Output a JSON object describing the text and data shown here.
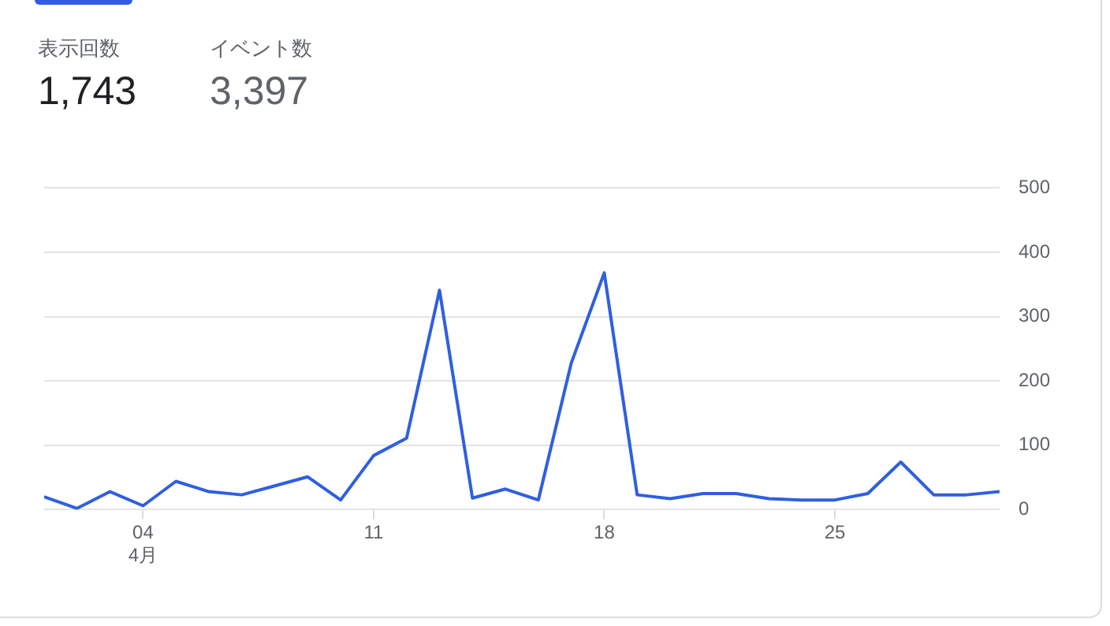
{
  "chart_data": {
    "type": "line",
    "annotations": [
      "表示回数",
      "1,743",
      "イベント数",
      "3,397"
    ],
    "x": [
      "--04-01",
      "--04-02",
      "--04-03",
      "--04-04",
      "--04-05",
      "--04-06",
      "--04-07",
      "--04-08",
      "--04-09",
      "--04-10",
      "--04-11",
      "--04-12",
      "--04-13",
      "--04-14",
      "--04-15",
      "--04-16",
      "--04-17",
      "--04-18",
      "--04-19",
      "--04-20",
      "--04-21",
      "--04-22",
      "--04-23",
      "--04-24",
      "--04-25",
      "--04-26",
      "--04-27",
      "--04-28",
      "--04-29",
      "--04-30"
    ],
    "series": [
      {
        "color": "#2f5fe0",
        "values": [
          20,
          2,
          28,
          6,
          44,
          28,
          23,
          37,
          51,
          15,
          84,
          111,
          341,
          18,
          32,
          15,
          228,
          368,
          23,
          17,
          25,
          25,
          17,
          15,
          15,
          25,
          74,
          23,
          23,
          28
        ]
      }
    ],
    "xlim": [
      "--04-01",
      "--04-30"
    ],
    "xticks": [
      {
        "value": "--04-04",
        "label": "04\n4月"
      },
      {
        "value": "--04-11",
        "label": "11"
      },
      {
        "value": "--04-18",
        "label": "18"
      },
      {
        "value": "--04-25",
        "label": "25"
      }
    ],
    "ylim": [
      0,
      500
    ],
    "yticks": [
      0,
      100,
      200,
      300,
      400,
      500
    ],
    "grid": "y",
    "legend": false,
    "marker": "none",
    "line_style": "solid"
  }
}
